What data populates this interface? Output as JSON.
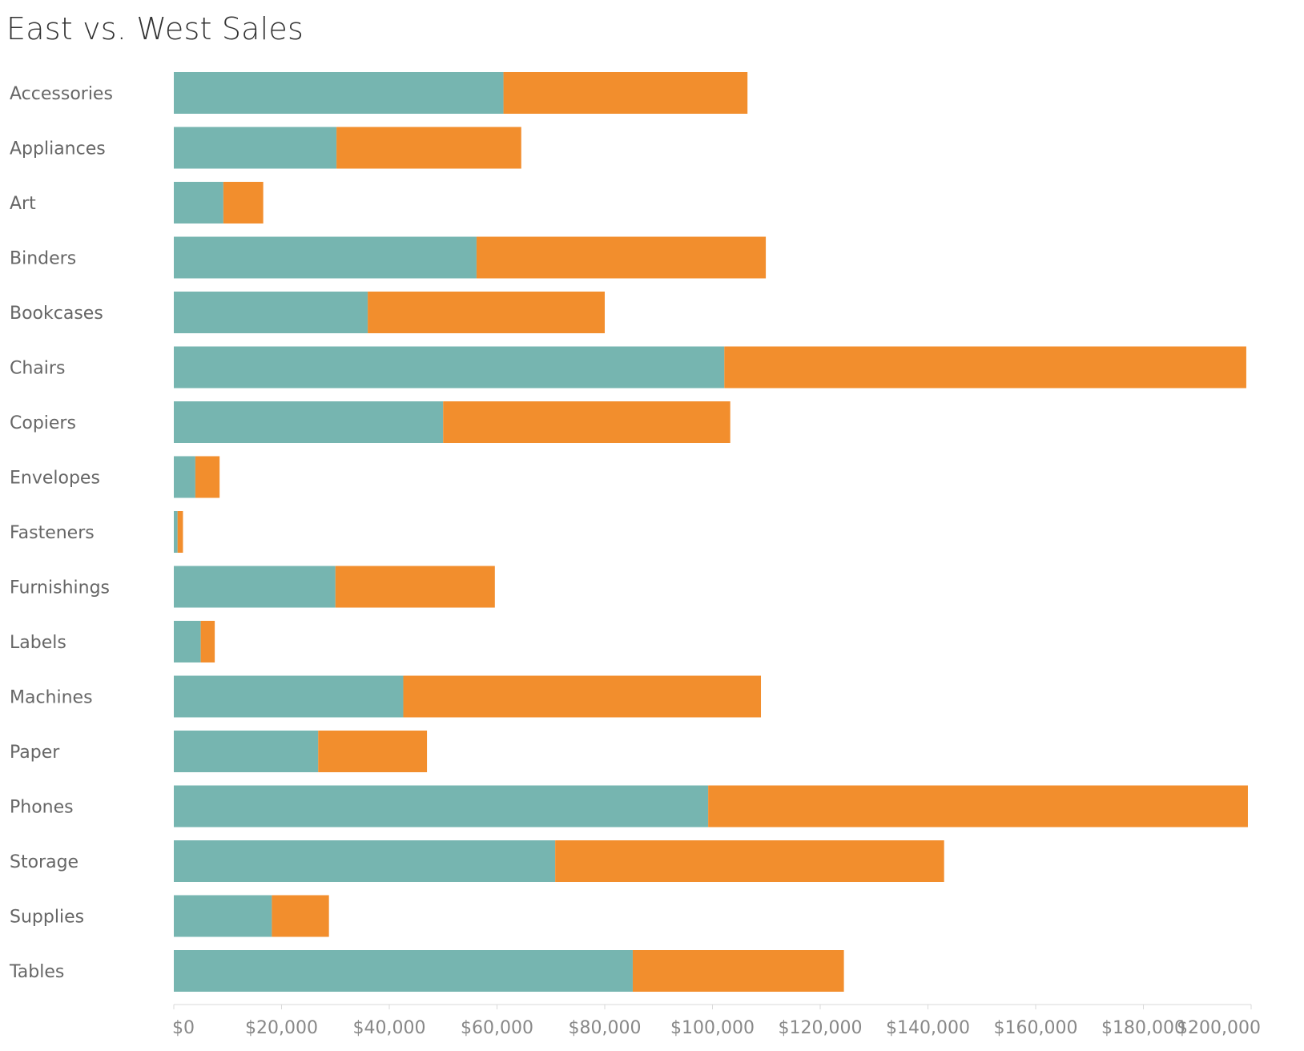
{
  "chart_data": {
    "type": "bar",
    "orientation": "horizontal",
    "stacked": true,
    "title": "East vs. West Sales",
    "xlabel": "",
    "ylabel": "",
    "categories": [
      "Accessories",
      "Appliances",
      "Art",
      "Binders",
      "Bookcases",
      "Chairs",
      "Copiers",
      "Envelopes",
      "Fasteners",
      "Furnishings",
      "Labels",
      "Machines",
      "Paper",
      "Phones",
      "Storage",
      "Supplies",
      "Tables"
    ],
    "series": [
      {
        "color": "#76b5b0",
        "values": [
          61200,
          30200,
          9200,
          56200,
          36000,
          102200,
          50000,
          4000,
          700,
          30000,
          5000,
          42600,
          26800,
          99200,
          70800,
          18200,
          85200
        ]
      },
      {
        "color": "#f28e2d",
        "values": [
          45300,
          34300,
          7400,
          53700,
          44000,
          96900,
          53300,
          4500,
          1000,
          29600,
          2600,
          66400,
          20200,
          100200,
          72200,
          10600,
          39200
        ]
      }
    ],
    "xlim": [
      0,
      200000
    ],
    "xticks": [
      0,
      20000,
      40000,
      60000,
      80000,
      100000,
      120000,
      140000,
      160000,
      180000,
      200000
    ],
    "xtick_labels": [
      "$0",
      "$20,000",
      "$40,000",
      "$60,000",
      "$80,000",
      "$100,000",
      "$120,000",
      "$140,000",
      "$160,000",
      "$180,000",
      "$200,000"
    ],
    "grid": false,
    "legend": "none"
  }
}
